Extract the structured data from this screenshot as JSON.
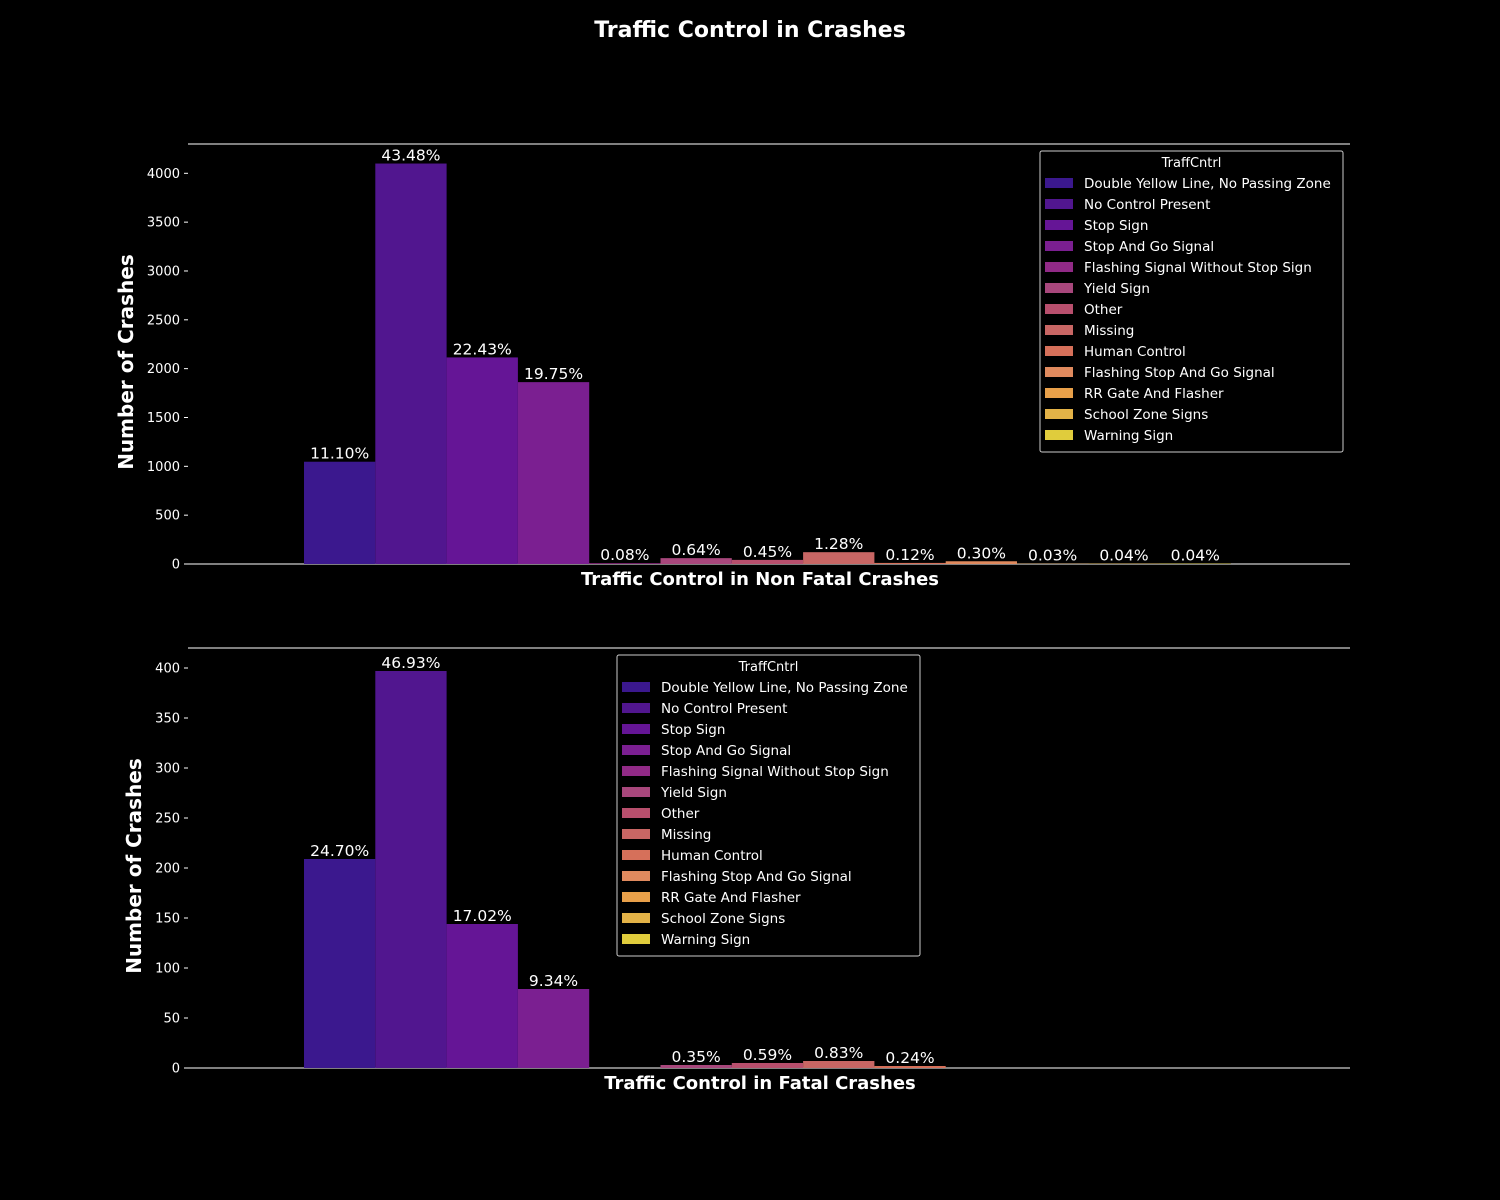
{
  "figure": {
    "title": "Traffic Control in Crashes"
  },
  "chart_data": [
    {
      "type": "bar",
      "xlabel": "Traffic Control in Non Fatal Crashes",
      "ylabel": "Number of Crashes",
      "ylim": [
        0,
        4300
      ],
      "yticks": [
        0,
        500,
        1000,
        1500,
        2000,
        2500,
        3000,
        3500,
        4000
      ],
      "legend_title": "TraffCntrl",
      "legend_position": "upper right",
      "categories": [
        "Double Yellow Line, No Passing Zone",
        "No Control Present",
        "Stop Sign",
        "Stop And Go Signal",
        "Flashing Signal Without Stop Sign",
        "Yield Sign",
        "Other",
        "Missing",
        "Human Control",
        "Flashing Stop And Go Signal",
        "RR Gate And Flasher",
        "School Zone Signs",
        "Warning Sign"
      ],
      "values": [
        1047,
        4100,
        2115,
        1862,
        8,
        60,
        42,
        121,
        11,
        28,
        3,
        4,
        4
      ],
      "labels": [
        "11.10%",
        "43.48%",
        "22.43%",
        "19.75%",
        "0.08%",
        "0.64%",
        "0.45%",
        "1.28%",
        "0.12%",
        "0.30%",
        "0.03%",
        "0.04%",
        "0.04%"
      ]
    },
    {
      "type": "bar",
      "xlabel": "Traffic Control in Fatal Crashes",
      "ylabel": "Number of Crashes",
      "ylim": [
        0,
        420
      ],
      "yticks": [
        0,
        50,
        100,
        150,
        200,
        250,
        300,
        350,
        400
      ],
      "legend_title": "TraffCntrl",
      "legend_position": "upper center",
      "categories": [
        "Double Yellow Line, No Passing Zone",
        "No Control Present",
        "Stop Sign",
        "Stop And Go Signal",
        "Flashing Signal Without Stop Sign",
        "Yield Sign",
        "Other",
        "Missing",
        "Human Control",
        "Flashing Stop And Go Signal",
        "RR Gate And Flasher",
        "School Zone Signs",
        "Warning Sign"
      ],
      "values": [
        209,
        397,
        144,
        79,
        0,
        3,
        5,
        7,
        2,
        0,
        0,
        0,
        0
      ],
      "labels": [
        "24.70%",
        "46.93%",
        "17.02%",
        "9.34%",
        "",
        "0.35%",
        "0.59%",
        "0.83%",
        "0.24%",
        "",
        "",
        "",
        ""
      ]
    }
  ],
  "colors": [
    "#3b188e",
    "#51168f",
    "#651596",
    "#7b1f91",
    "#912a86",
    "#a8477c",
    "#b84f6d",
    "#c86664",
    "#d6705a",
    "#e08a5e",
    "#e8a04a",
    "#e3b247",
    "#e0cc3c"
  ],
  "style": {
    "background": "#000000",
    "foreground": "#ffffff"
  }
}
